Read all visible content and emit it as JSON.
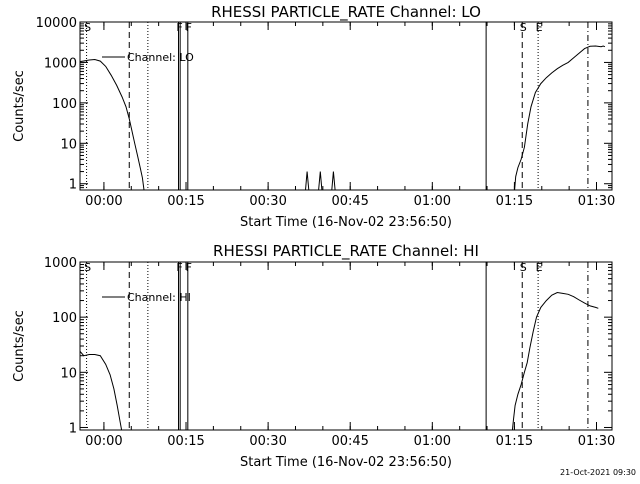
{
  "footer": {
    "date_stamp": "21-Oct-2021 09:30"
  },
  "chart_data": [
    {
      "type": "line",
      "title": "RHESSI PARTICLE_RATE Channel: LO",
      "xlabel": "Start Time (16-Nov-02 23:56:50)",
      "ylabel": "Counts/sec",
      "y_scale": "log",
      "ylim": [
        0.7,
        10000
      ],
      "x_units": "minutes since 23:56:50",
      "xlim": [
        -1.2,
        96
      ],
      "x_ticks": [
        3.17,
        18.17,
        33.17,
        48.17,
        63.17,
        78.17,
        93.17
      ],
      "x_tick_labels": [
        "00:00",
        "00:15",
        "00:30",
        "00:45",
        "01:00",
        "01:15",
        "01:30"
      ],
      "y_ticks": [
        1,
        10,
        100,
        1000,
        10000
      ],
      "y_tick_labels": [
        "1",
        "10",
        "100",
        "1000",
        "10000"
      ],
      "legend": {
        "position": "top-left",
        "entries": [
          "Channel: LO"
        ]
      },
      "markers": [
        {
          "label": "S",
          "x": 0.0,
          "style": "dotted"
        },
        {
          "label": "",
          "x": 7.8,
          "style": "dashed"
        },
        {
          "label": "",
          "x": 11.2,
          "style": "dotted"
        },
        {
          "label": "F",
          "x": 16.8,
          "style": "solid"
        },
        {
          "label": "",
          "x": 17.1,
          "style": "solid"
        },
        {
          "label": "F",
          "x": 18.5,
          "style": "solid"
        },
        {
          "label": "",
          "x": 73.0,
          "style": "solid"
        },
        {
          "label": "S",
          "x": 79.6,
          "style": "dashed"
        },
        {
          "label": "E",
          "x": 82.5,
          "style": "dotted"
        },
        {
          "label": "",
          "x": 91.6,
          "style": "dashdot"
        }
      ],
      "series": [
        {
          "name": "Channel: LO",
          "segments": [
            [
              [
                -1.2,
                1050
              ],
              [
                0.5,
                1150
              ],
              [
                1.5,
                1180
              ],
              [
                2.5,
                1080
              ],
              [
                3.5,
                800
              ],
              [
                4.5,
                480
              ],
              [
                5.5,
                270
              ],
              [
                6.5,
                140
              ],
              [
                7.2,
                80
              ],
              [
                7.8,
                40
              ],
              [
                8.3,
                20
              ],
              [
                8.8,
                10
              ],
              [
                9.3,
                5
              ],
              [
                9.8,
                2.5
              ],
              [
                10.2,
                1.4
              ],
              [
                10.5,
                0.7
              ]
            ],
            [
              [
                40,
                0.7
              ],
              [
                40.3,
                2
              ],
              [
                40.6,
                0.7
              ]
            ],
            [
              [
                42.4,
                0.7
              ],
              [
                42.7,
                2
              ],
              [
                43.0,
                0.7
              ]
            ],
            [
              [
                44.8,
                0.7
              ],
              [
                45.1,
                2
              ],
              [
                45.4,
                0.7
              ]
            ],
            [
              [
                78.2,
                0.7
              ],
              [
                78.4,
                1.5
              ],
              [
                78.8,
                2.5
              ],
              [
                79.4,
                4
              ],
              [
                80.0,
                8
              ],
              [
                80.6,
                30
              ],
              [
                81.2,
                80
              ],
              [
                82.0,
                180
              ],
              [
                83.0,
                300
              ],
              [
                84.0,
                420
              ],
              [
                85.0,
                550
              ],
              [
                86.0,
                700
              ],
              [
                87.0,
                850
              ],
              [
                88.0,
                1000
              ],
              [
                89.0,
                1300
              ],
              [
                90.0,
                1700
              ],
              [
                91.0,
                2200
              ],
              [
                92.0,
                2500
              ],
              [
                93.0,
                2550
              ],
              [
                94.0,
                2450
              ],
              [
                94.4,
                2550
              ],
              [
                94.7,
                2450
              ]
            ]
          ]
        }
      ]
    },
    {
      "type": "line",
      "title": "RHESSI PARTICLE_RATE Channel: HI",
      "xlabel": "Start Time (16-Nov-02 23:56:50)",
      "ylabel": "Counts/sec",
      "y_scale": "log",
      "ylim": [
        0.9,
        1000
      ],
      "x_units": "minutes since 23:56:50",
      "xlim": [
        -1.2,
        96
      ],
      "x_ticks": [
        3.17,
        18.17,
        33.17,
        48.17,
        63.17,
        78.17,
        93.17
      ],
      "x_tick_labels": [
        "00:00",
        "00:15",
        "00:30",
        "00:45",
        "01:00",
        "01:15",
        "01:30"
      ],
      "y_ticks": [
        1,
        10,
        100,
        1000
      ],
      "y_tick_labels": [
        "1",
        "10",
        "100",
        "1000"
      ],
      "legend": {
        "position": "top-left",
        "entries": [
          "Channel: HI"
        ]
      },
      "markers": [
        {
          "label": "S",
          "x": 0.0,
          "style": "dotted"
        },
        {
          "label": "",
          "x": 7.8,
          "style": "dashed"
        },
        {
          "label": "",
          "x": 11.2,
          "style": "dotted"
        },
        {
          "label": "F",
          "x": 16.8,
          "style": "solid"
        },
        {
          "label": "",
          "x": 17.1,
          "style": "solid"
        },
        {
          "label": "F",
          "x": 18.5,
          "style": "solid"
        },
        {
          "label": "",
          "x": 73.0,
          "style": "solid"
        },
        {
          "label": "S",
          "x": 79.6,
          "style": "dashed"
        },
        {
          "label": "E",
          "x": 82.5,
          "style": "dotted"
        },
        {
          "label": "",
          "x": 91.6,
          "style": "dashdot"
        }
      ],
      "series": [
        {
          "name": "Channel: HI",
          "segments": [
            [
              [
                -1.2,
                24
              ],
              [
                -0.5,
                20
              ],
              [
                0.5,
                21
              ],
              [
                1.5,
                21
              ],
              [
                2.5,
                20
              ],
              [
                3.5,
                14
              ],
              [
                4.3,
                9
              ],
              [
                5.0,
                5
              ],
              [
                5.6,
                2.5
              ],
              [
                6.1,
                1.3
              ],
              [
                6.4,
                0.9
              ]
            ],
            [
              [
                77.8,
                0.9
              ],
              [
                78.0,
                1.4
              ],
              [
                78.3,
                2.5
              ],
              [
                78.8,
                4
              ],
              [
                79.4,
                6
              ],
              [
                80.0,
                10
              ],
              [
                80.5,
                15
              ],
              [
                81.0,
                28
              ],
              [
                81.6,
                55
              ],
              [
                82.2,
                100
              ],
              [
                83.0,
                150
              ],
              [
                84.0,
                200
              ],
              [
                85.0,
                250
              ],
              [
                86.0,
                280
              ],
              [
                87.0,
                270
              ],
              [
                88.0,
                260
              ],
              [
                89.0,
                235
              ],
              [
                90.0,
                205
              ],
              [
                91.0,
                180
              ],
              [
                92.0,
                160
              ],
              [
                93.0,
                150
              ],
              [
                93.5,
                145
              ]
            ]
          ]
        }
      ]
    }
  ]
}
